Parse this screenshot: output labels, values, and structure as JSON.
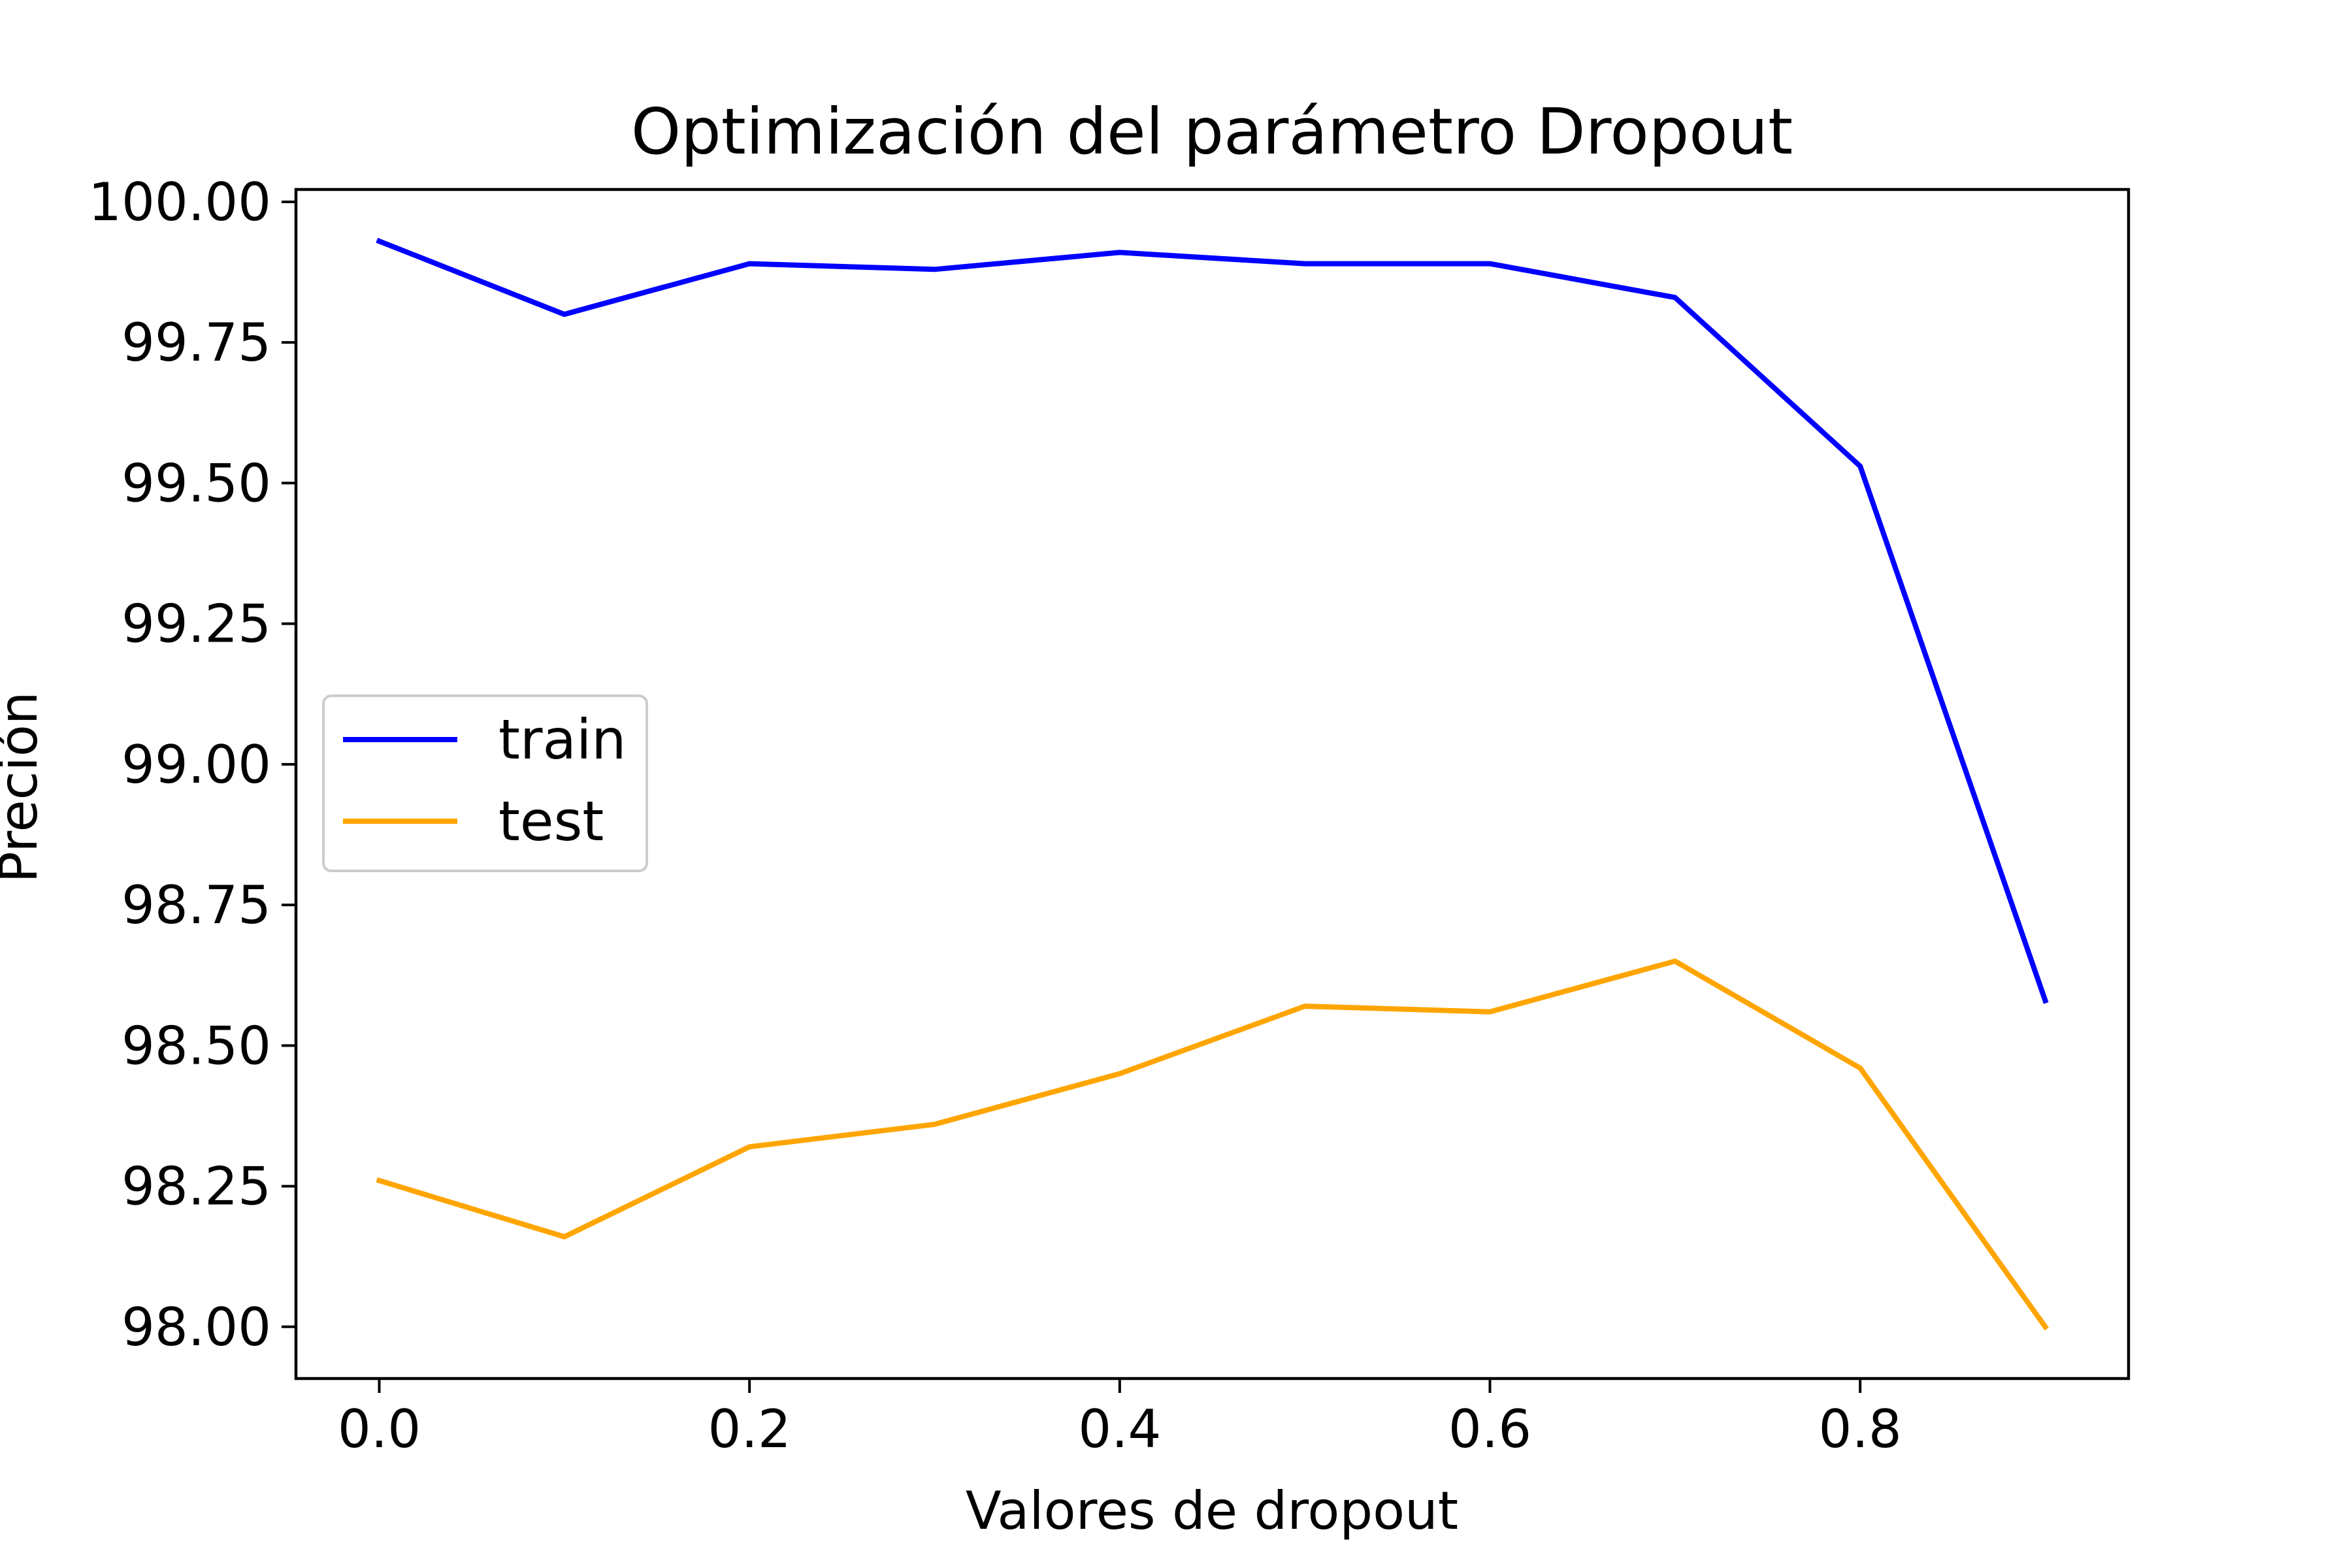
{
  "chart_data": {
    "type": "line",
    "title": "Optimización del parámetro Dropout",
    "xlabel": "Valores de dropout",
    "ylabel": "Preción",
    "xlim": [
      -0.045,
      0.945
    ],
    "ylim": [
      97.908,
      100.022
    ],
    "x": [
      0.0,
      0.1,
      0.2,
      0.3,
      0.4,
      0.5,
      0.6,
      0.7,
      0.8,
      0.9
    ],
    "xticks": [
      0.0,
      0.2,
      0.4,
      0.6,
      0.8
    ],
    "xtick_labels": [
      "0.0",
      "0.2",
      "0.4",
      "0.6",
      "0.8"
    ],
    "yticks": [
      98.0,
      98.25,
      98.5,
      98.75,
      99.0,
      99.25,
      99.5,
      99.75,
      100.0
    ],
    "ytick_labels": [
      "98.00",
      "98.25",
      "98.50",
      "98.75",
      "99.00",
      "99.25",
      "99.50",
      "99.75",
      "100.00"
    ],
    "grid": false,
    "legend_position": "center-left",
    "series": [
      {
        "name": "train",
        "color": "#0000ff",
        "values": [
          99.93,
          99.8,
          99.89,
          99.88,
          99.91,
          99.89,
          99.89,
          99.83,
          99.53,
          98.58
        ]
      },
      {
        "name": "test",
        "color": "#ffa500",
        "values": [
          98.26,
          98.16,
          98.32,
          98.36,
          98.45,
          98.57,
          98.56,
          98.65,
          98.46,
          98.0
        ]
      }
    ]
  }
}
